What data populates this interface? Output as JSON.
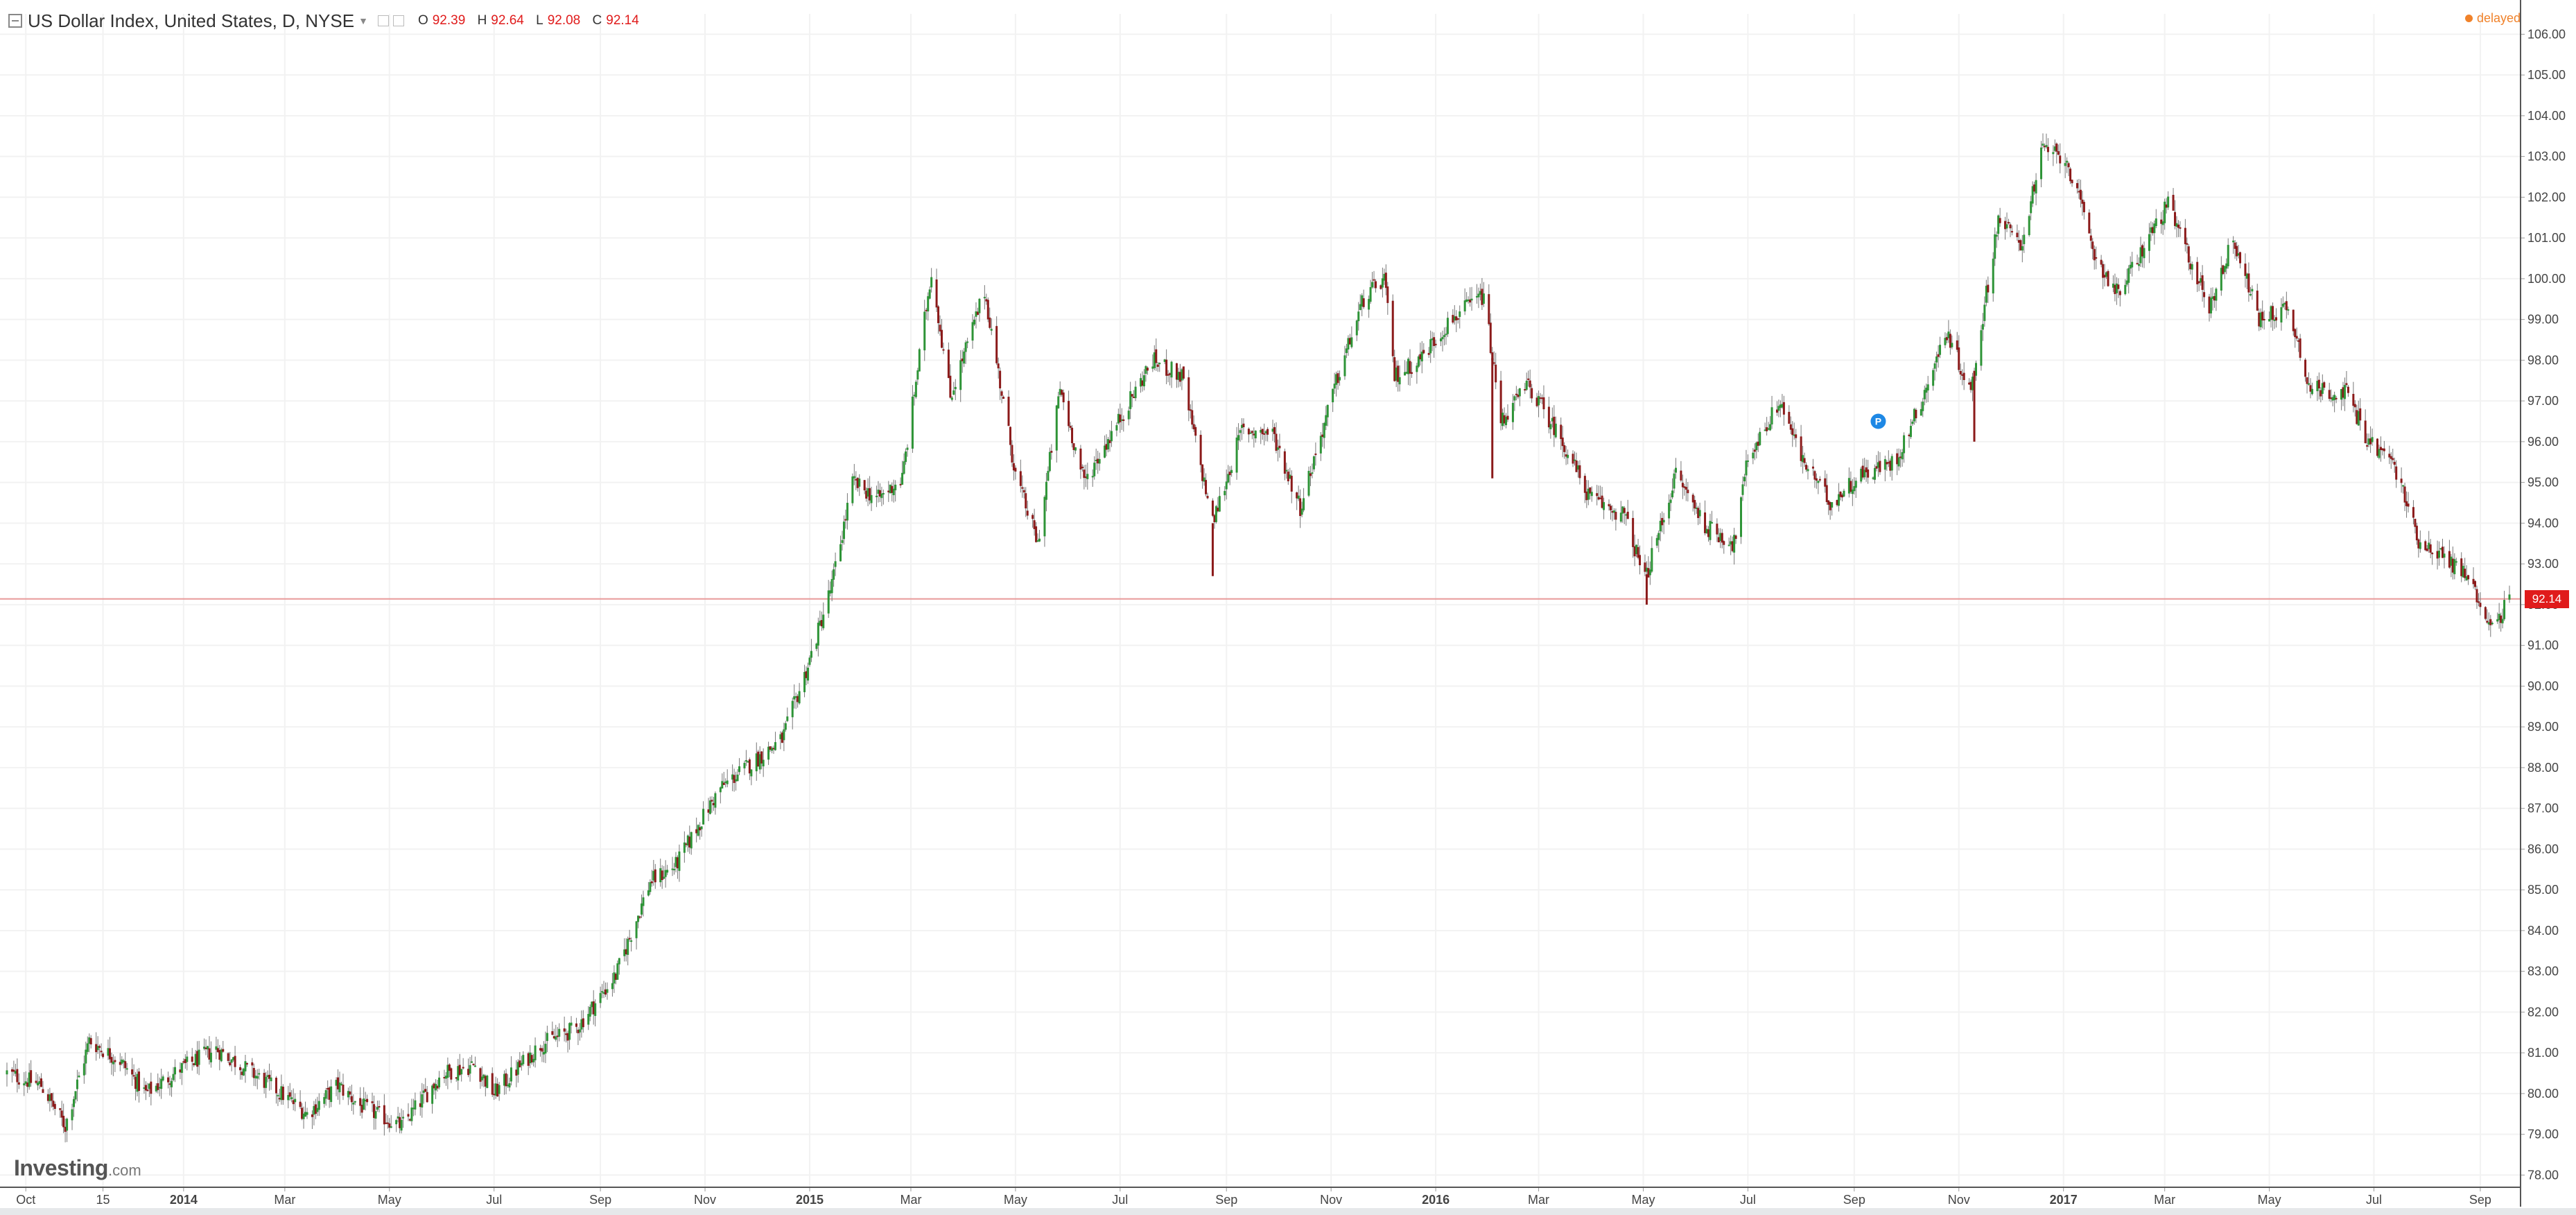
{
  "header": {
    "title": "US Dollar Index, United States, D, NYSE",
    "ohlc": [
      {
        "label": "O",
        "value": "92.39"
      },
      {
        "label": "H",
        "value": "92.64"
      },
      {
        "label": "L",
        "value": "92.08"
      },
      {
        "label": "C",
        "value": "92.14"
      }
    ],
    "status": "delayed"
  },
  "logo": {
    "main": "Investing",
    "domain": ".com"
  },
  "colors": {
    "up": "#2e9437",
    "down": "#8b1a1a",
    "last_price_line": "#e89999",
    "last_price_badge": "#e01b1b",
    "grid": "#f2f2f2",
    "axis_text": "#444444",
    "marker": "#1e88e5"
  },
  "chart_data": {
    "type": "candlestick",
    "y_axis_ticks": [
      "106.00",
      "105.00",
      "104.00",
      "103.00",
      "102.00",
      "101.00",
      "100.00",
      "99.00",
      "98.00",
      "97.00",
      "96.00",
      "95.00",
      "94.00",
      "93.00",
      "92.00",
      "91.00",
      "90.00",
      "89.00",
      "88.00",
      "87.00",
      "86.00",
      "85.00",
      "84.00",
      "83.00",
      "82.00",
      "81.00",
      "80.00",
      "79.00",
      "78.00"
    ],
    "ylim": [
      77.7,
      106.5
    ],
    "x_axis_ticks": [
      {
        "label": "Oct",
        "date": "2013-10-01",
        "bold": false
      },
      {
        "label": "15",
        "date": "2013-11-15",
        "bold": false
      },
      {
        "label": "2014",
        "date": "2014-01-01",
        "bold": true
      },
      {
        "label": "Mar",
        "date": "2014-03-01",
        "bold": false
      },
      {
        "label": "May",
        "date": "2014-05-01",
        "bold": false
      },
      {
        "label": "Jul",
        "date": "2014-07-01",
        "bold": false
      },
      {
        "label": "Sep",
        "date": "2014-09-01",
        "bold": false
      },
      {
        "label": "Nov",
        "date": "2014-11-01",
        "bold": false
      },
      {
        "label": "2015",
        "date": "2015-01-01",
        "bold": true
      },
      {
        "label": "Mar",
        "date": "2015-03-01",
        "bold": false
      },
      {
        "label": "May",
        "date": "2015-05-01",
        "bold": false
      },
      {
        "label": "Jul",
        "date": "2015-07-01",
        "bold": false
      },
      {
        "label": "Sep",
        "date": "2015-09-01",
        "bold": false
      },
      {
        "label": "Nov",
        "date": "2015-11-01",
        "bold": false
      },
      {
        "label": "2016",
        "date": "2016-01-01",
        "bold": true
      },
      {
        "label": "Mar",
        "date": "2016-03-01",
        "bold": false
      },
      {
        "label": "May",
        "date": "2016-05-01",
        "bold": false
      },
      {
        "label": "Jul",
        "date": "2016-07-01",
        "bold": false
      },
      {
        "label": "Sep",
        "date": "2016-09-01",
        "bold": false
      },
      {
        "label": "Nov",
        "date": "2016-11-01",
        "bold": false
      },
      {
        "label": "2017",
        "date": "2017-01-01",
        "bold": true
      },
      {
        "label": "Mar",
        "date": "2017-03-01",
        "bold": false
      },
      {
        "label": "May",
        "date": "2017-05-01",
        "bold": false
      },
      {
        "label": "Jul",
        "date": "2017-07-01",
        "bold": false
      },
      {
        "label": "Sep",
        "date": "2017-09-01",
        "bold": false
      }
    ],
    "x_range": [
      "2013-09-20",
      "2017-09-18"
    ],
    "last_price": 92.14,
    "last_price_label": "92.14",
    "marker": {
      "label": "P",
      "date": "2016-09-15",
      "value": 96.5
    },
    "close_path": [
      [
        "2013-09-20",
        80.5
      ],
      [
        "2013-10-10",
        80.2
      ],
      [
        "2013-10-24",
        79.2
      ],
      [
        "2013-11-07",
        81.3
      ],
      [
        "2013-11-25",
        80.8
      ],
      [
        "2013-12-10",
        80.0
      ],
      [
        "2013-12-30",
        80.6
      ],
      [
        "2014-01-20",
        81.1
      ],
      [
        "2014-02-03",
        80.7
      ],
      [
        "2014-02-24",
        80.1
      ],
      [
        "2014-03-14",
        79.5
      ],
      [
        "2014-04-01",
        80.2
      ],
      [
        "2014-04-14",
        79.7
      ],
      [
        "2014-05-08",
        79.2
      ],
      [
        "2014-06-01",
        80.5
      ],
      [
        "2014-06-20",
        80.7
      ],
      [
        "2014-07-01",
        80.0
      ],
      [
        "2014-07-28",
        81.2
      ],
      [
        "2014-08-18",
        81.6
      ],
      [
        "2014-09-10",
        82.9
      ],
      [
        "2014-09-30",
        85.2
      ],
      [
        "2014-10-15",
        85.6
      ],
      [
        "2014-10-31",
        86.8
      ],
      [
        "2014-11-10",
        87.5
      ],
      [
        "2014-12-01",
        88.2
      ],
      [
        "2014-12-16",
        88.7
      ],
      [
        "2014-12-31",
        90.5
      ],
      [
        "2015-01-14",
        92.5
      ],
      [
        "2015-01-26",
        95.0
      ],
      [
        "2015-02-10",
        94.6
      ],
      [
        "2015-02-24",
        95.1
      ],
      [
        "2015-03-13",
        100.2
      ],
      [
        "2015-03-24",
        97.1
      ],
      [
        "2015-04-13",
        99.7
      ],
      [
        "2015-05-01",
        95.2
      ],
      [
        "2015-05-14",
        93.5
      ],
      [
        "2015-05-27",
        97.3
      ],
      [
        "2015-06-10",
        95.0
      ],
      [
        "2015-06-26",
        96.2
      ],
      [
        "2015-07-20",
        98.0
      ],
      [
        "2015-08-06",
        97.6
      ],
      [
        "2015-08-24",
        94.0
      ],
      [
        "2015-09-10",
        96.3
      ],
      [
        "2015-09-28",
        96.2
      ],
      [
        "2015-10-14",
        94.4
      ],
      [
        "2015-11-05",
        97.6
      ],
      [
        "2015-11-20",
        99.5
      ],
      [
        "2015-12-02",
        100.0
      ],
      [
        "2015-12-08",
        97.6
      ],
      [
        "2015-12-22",
        98.0
      ],
      [
        "2016-01-10",
        99.0
      ],
      [
        "2016-01-29",
        99.6
      ],
      [
        "2016-02-08",
        96.5
      ],
      [
        "2016-02-24",
        97.4
      ],
      [
        "2016-03-15",
        96.0
      ],
      [
        "2016-03-31",
        94.6
      ],
      [
        "2016-04-20",
        94.2
      ],
      [
        "2016-05-02",
        92.6
      ],
      [
        "2016-05-20",
        95.2
      ],
      [
        "2016-06-07",
        93.9
      ],
      [
        "2016-06-23",
        93.5
      ],
      [
        "2016-07-01",
        95.6
      ],
      [
        "2016-07-20",
        97.0
      ],
      [
        "2016-08-01",
        95.6
      ],
      [
        "2016-08-18",
        94.5
      ],
      [
        "2016-09-05",
        95.2
      ],
      [
        "2016-09-25",
        95.5
      ],
      [
        "2016-10-10",
        97.0
      ],
      [
        "2016-10-25",
        98.7
      ],
      [
        "2016-11-08",
        97.2
      ],
      [
        "2016-11-24",
        101.5
      ],
      [
        "2016-12-07",
        100.8
      ],
      [
        "2016-12-20",
        103.2
      ],
      [
        "2017-01-03",
        102.9
      ],
      [
        "2017-01-20",
        100.5
      ],
      [
        "2017-02-02",
        99.6
      ],
      [
        "2017-02-22",
        101.2
      ],
      [
        "2017-03-03",
        101.8
      ],
      [
        "2017-03-27",
        99.3
      ],
      [
        "2017-04-10",
        101.0
      ],
      [
        "2017-04-25",
        99.0
      ],
      [
        "2017-05-12",
        99.3
      ],
      [
        "2017-05-25",
        97.3
      ],
      [
        "2017-06-15",
        97.2
      ],
      [
        "2017-06-28",
        96.0
      ],
      [
        "2017-07-12",
        95.5
      ],
      [
        "2017-07-27",
        93.6
      ],
      [
        "2017-08-10",
        93.2
      ],
      [
        "2017-08-25",
        92.7
      ],
      [
        "2017-09-08",
        91.4
      ],
      [
        "2017-09-18",
        92.14
      ]
    ],
    "spikes": [
      {
        "date": "2016-02-03",
        "low": 95.1
      },
      {
        "date": "2016-11-10",
        "low": 96.0
      },
      {
        "date": "2015-08-24",
        "low": 92.7
      },
      {
        "date": "2016-05-03",
        "low": 92.0
      }
    ]
  }
}
